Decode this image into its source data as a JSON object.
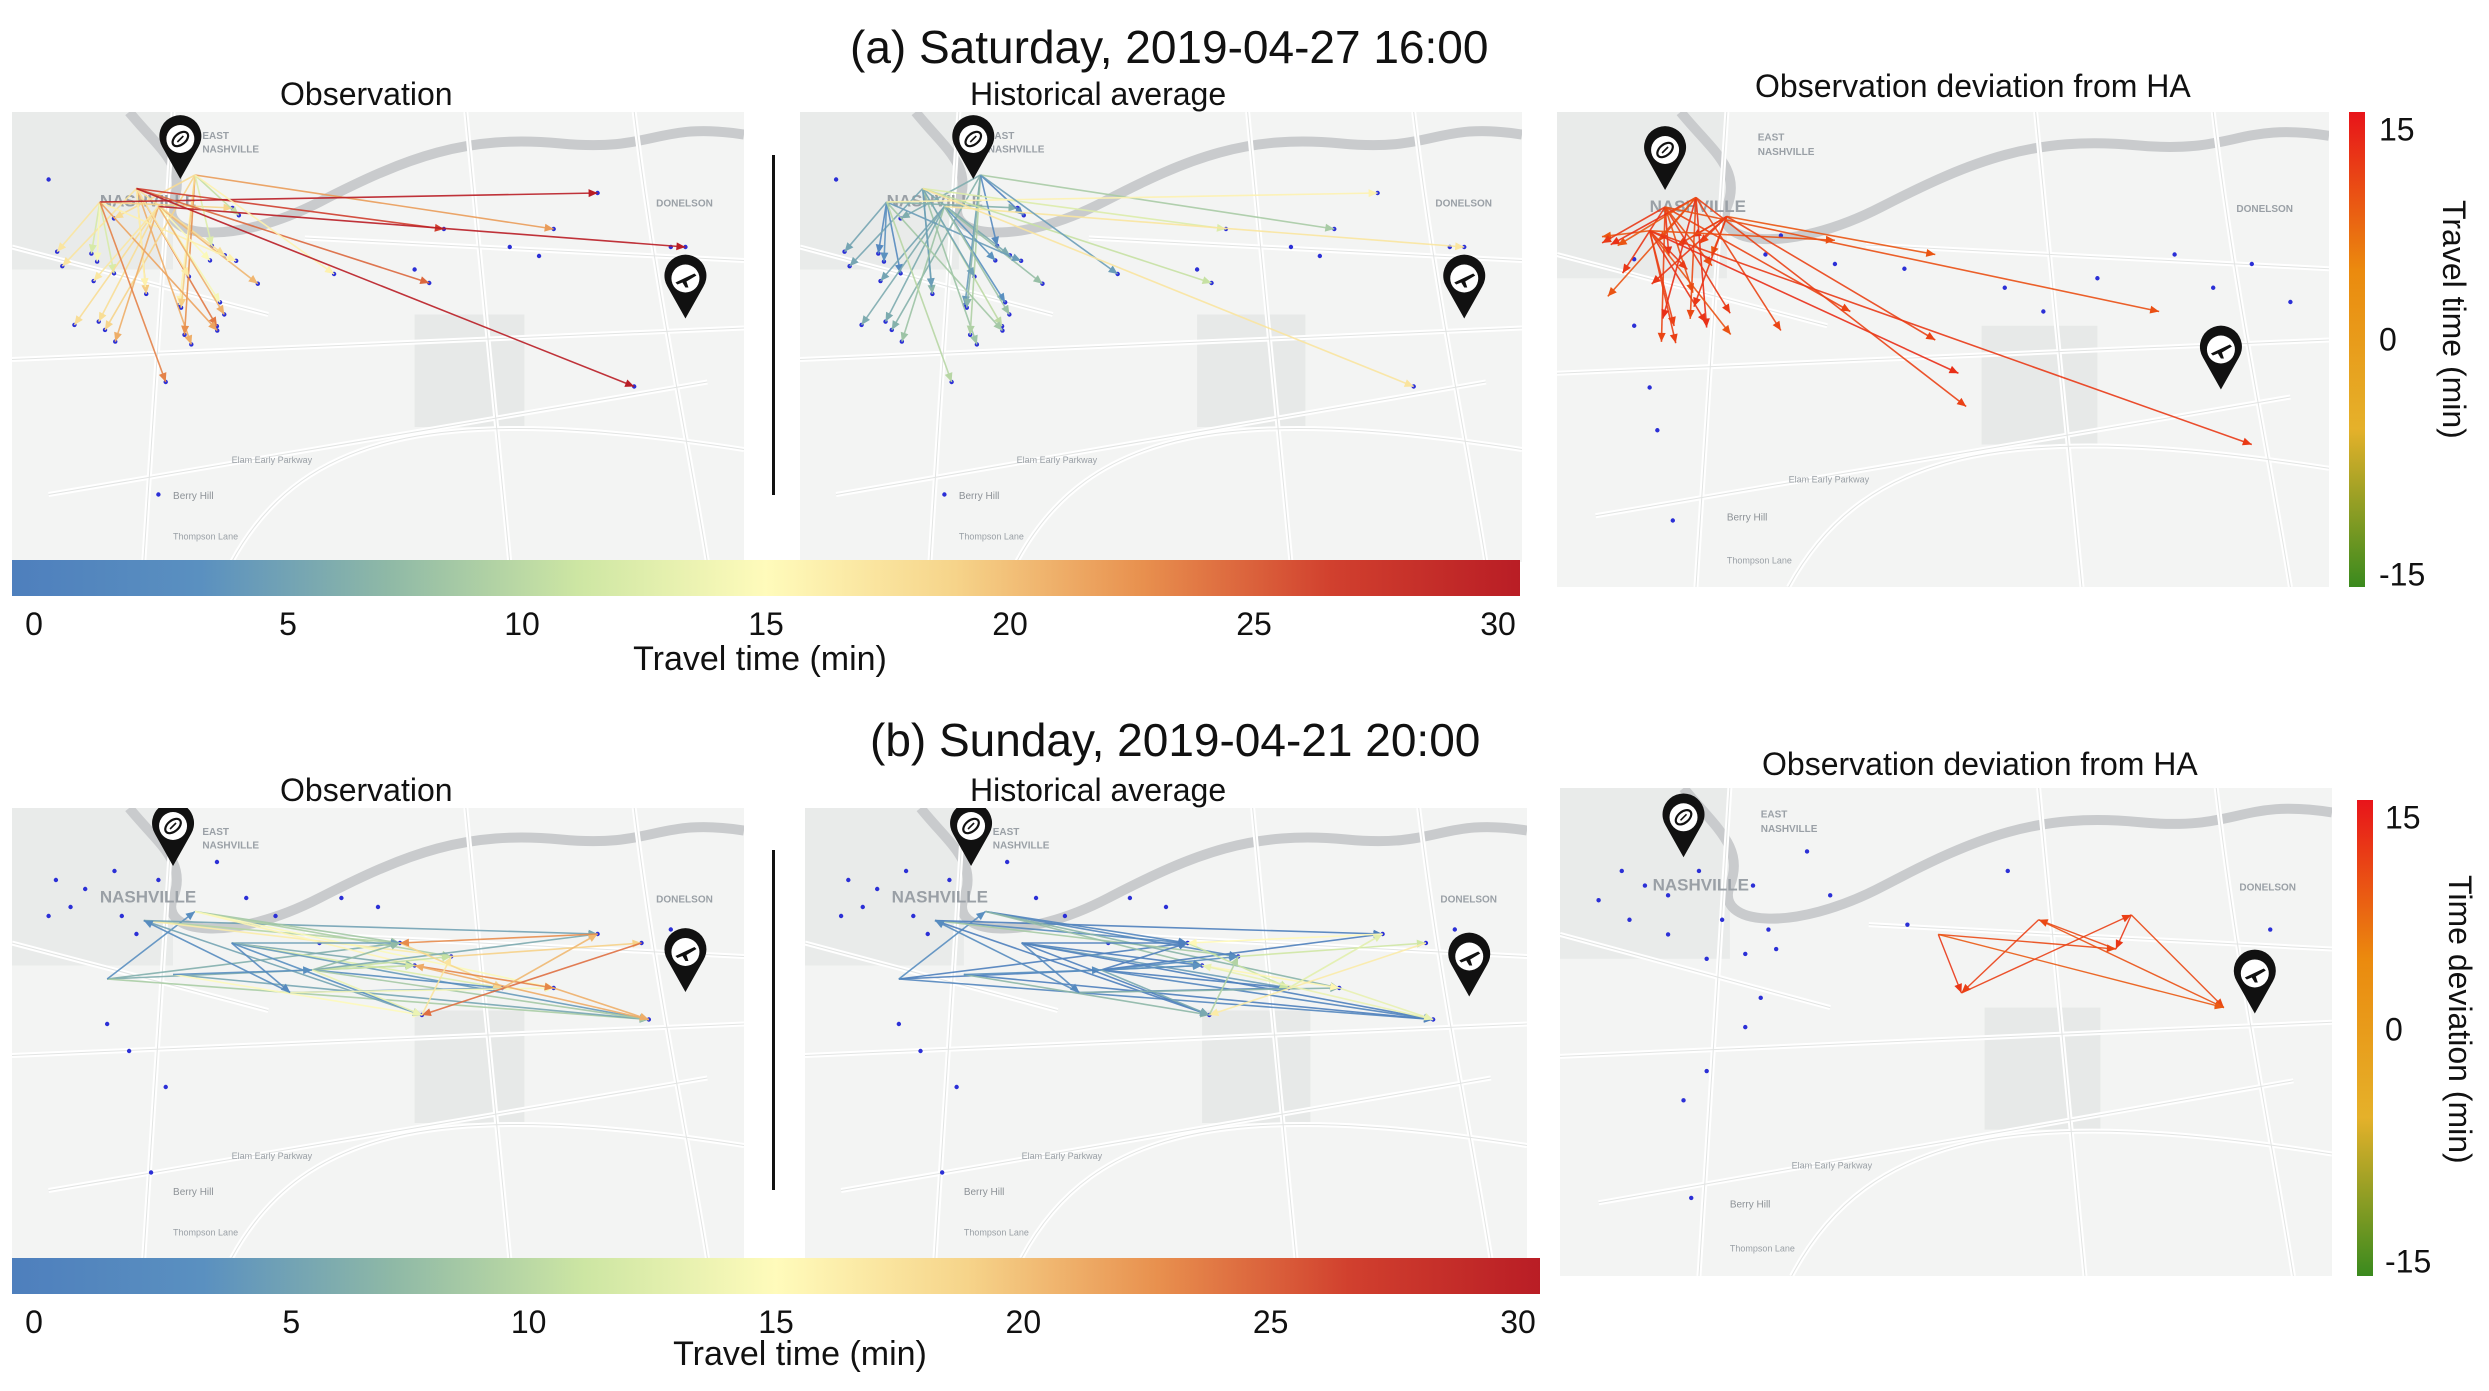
{
  "sections": [
    {
      "title": "(a) Saturday, 2019-04-27  16:00",
      "obs_title": "Observation",
      "ha_title": "Historical average",
      "dev_title": "Observation deviation from HA",
      "travel_bar": {
        "ticks": [
          "0",
          "5",
          "10",
          "15",
          "20",
          "25",
          "30"
        ],
        "label": "Travel time (min)"
      },
      "dev_bar": {
        "ticks": [
          "15",
          "0",
          "-15"
        ],
        "label": "Travel time (min)"
      }
    },
    {
      "title": "(b) Sunday, 2019-04-21  20:00",
      "obs_title": "Observation",
      "ha_title": "Historical average",
      "dev_title": "Observation deviation from HA",
      "travel_bar": {
        "ticks": [
          "0",
          "5",
          "10",
          "15",
          "20",
          "25",
          "30"
        ],
        "label": "Travel time (min)"
      },
      "dev_bar": {
        "ticks": [
          "15",
          "0",
          "-15"
        ],
        "label": "Time deviation (min)"
      }
    }
  ],
  "map_labels": {
    "east": "EAST",
    "nashville_small": "NASHVILLE",
    "nashville": "NASHVILLE",
    "donelson": "DONELSON",
    "berry_hill": "Berry Hill",
    "parkway": "Elam Early Parkway",
    "thompson": "Thompson Lane"
  },
  "icons": {
    "stadium": "football-marker-icon",
    "airport": "airplane-marker-icon"
  },
  "colors": {
    "travel_scale": [
      "#4e7fbd",
      "#5a90c0",
      "#8fb9a6",
      "#cde6a3",
      "#fffbbb",
      "#f6d48a",
      "#e8904e",
      "#d1402e",
      "#b91d25"
    ],
    "deviation_scale": [
      "#e8141a",
      "#eb8a0e",
      "#e5b12a",
      "#3a8a1e"
    ],
    "map_bg": "#f3f4f3",
    "river": "#c9cbcd",
    "road": "#ffffff"
  },
  "chart_data": [
    {
      "type": "flow-map",
      "title": "(a) Saturday, 2019-04-27 16:00",
      "panels": [
        "Observation",
        "Historical average",
        "Observation deviation from HA"
      ],
      "colorbar_travel": {
        "label": "Travel time (min)",
        "range": [
          0,
          30
        ],
        "ticks": [
          0,
          5,
          10,
          15,
          20,
          25,
          30
        ]
      },
      "colorbar_deviation": {
        "label": "Travel time (min)",
        "range": [
          -15,
          15
        ],
        "ticks": [
          15,
          0,
          -15
        ]
      },
      "summary": "Trips to/from the stadium area; observed travel times higher than historical average (deviation ~ +8 to +12 min, orange/red arrows)."
    },
    {
      "type": "flow-map",
      "title": "(b) Sunday, 2019-04-21 20:00",
      "panels": [
        "Observation",
        "Historical average",
        "Observation deviation from HA"
      ],
      "colorbar_travel": {
        "label": "Travel time (min)",
        "range": [
          0,
          30
        ],
        "ticks": [
          0,
          5,
          10,
          15,
          20,
          25,
          30
        ]
      },
      "colorbar_deviation": {
        "label": "Time deviation (min)",
        "range": [
          -15,
          15
        ],
        "ticks": [
          15,
          0,
          -15
        ]
      },
      "summary": "Trips near the airport area show higher observed travel times than historical average (red arrows)."
    }
  ]
}
